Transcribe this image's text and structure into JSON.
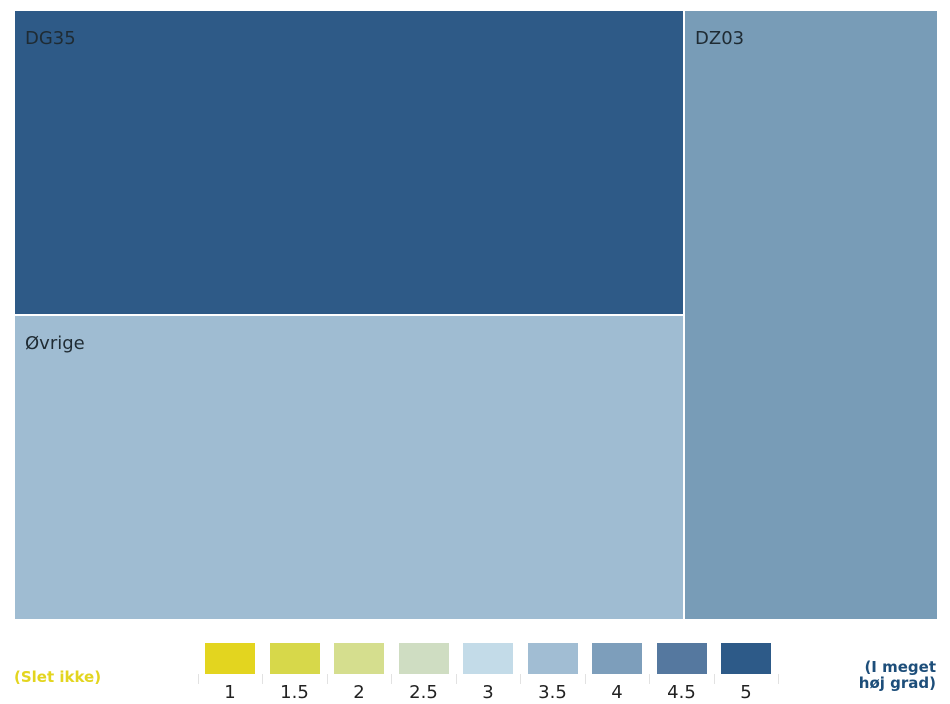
{
  "chart_data": {
    "type": "treemap",
    "items": [
      {
        "name": "DG35",
        "color": "#2e5a87"
      },
      {
        "name": "Øvrige",
        "color": "#9fbcd2"
      },
      {
        "name": "DZ03",
        "color": "#789cb7"
      }
    ],
    "legend": {
      "values": [
        "1",
        "1.5",
        "2",
        "2.5",
        "3",
        "3.5",
        "4",
        "4.5",
        "5"
      ],
      "colors": [
        "#e3d51f",
        "#d7d84a",
        "#d5de8e",
        "#cfddc2",
        "#c3dbe8",
        "#a1bdd3",
        "#7d9ebb",
        "#55789f",
        "#2d5a88"
      ],
      "low_label": "(Slet ikke)",
      "high_label": "(I meget høj grad)"
    }
  }
}
